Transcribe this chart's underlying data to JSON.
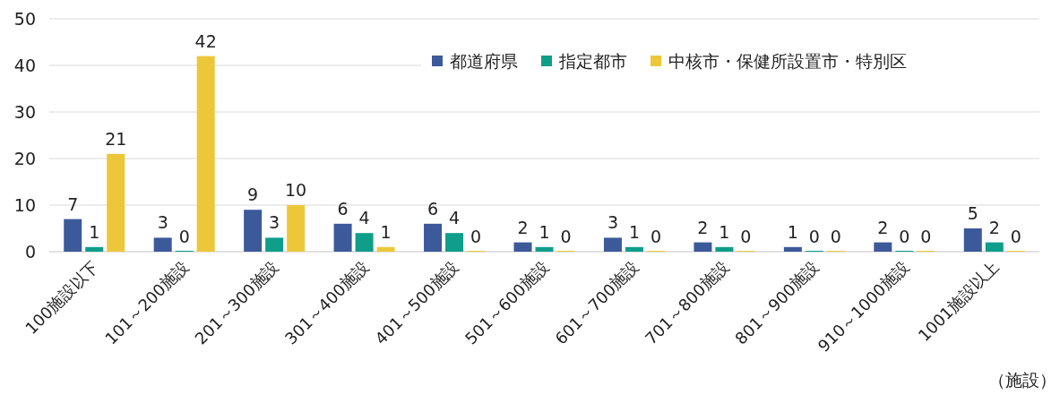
{
  "chart_data": {
    "type": "bar",
    "categories": [
      "100施設以下",
      "101～200施設",
      "201～300施設",
      "301～400施設",
      "401～500施設",
      "501～600施設",
      "601～700施設",
      "701～800施設",
      "801～900施設",
      "910～1000施設",
      "1001施設以上"
    ],
    "series": [
      {
        "name": "都道府県",
        "color": "#3c5a9a",
        "values": [
          7,
          3,
          9,
          6,
          6,
          2,
          3,
          2,
          1,
          2,
          5
        ]
      },
      {
        "name": "指定都市",
        "color": "#0e9e8a",
        "values": [
          1,
          0,
          3,
          4,
          4,
          1,
          1,
          1,
          0,
          0,
          2
        ]
      },
      {
        "name": "中核市・保健所設置市・特別区",
        "color": "#ecc73a",
        "values": [
          21,
          42,
          10,
          1,
          0,
          0,
          0,
          0,
          0,
          0,
          0
        ]
      }
    ],
    "ylim": [
      0,
      50
    ],
    "yticks": [
      0,
      10,
      20,
      30,
      40,
      50
    ],
    "grid": "y",
    "legend": "top right",
    "data_labels": true,
    "annotations": [
      "（施設）"
    ]
  }
}
